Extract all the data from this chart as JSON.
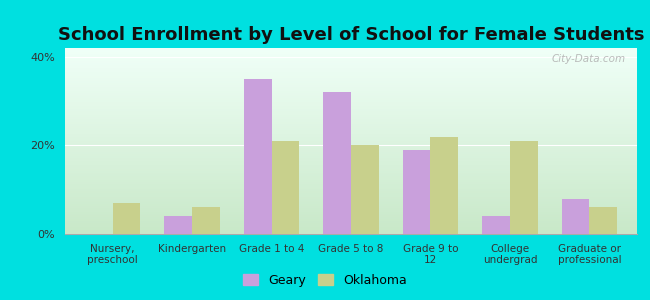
{
  "title": "School Enrollment by Level of School for Female Students",
  "categories": [
    "Nursery,\npreschool",
    "Kindergarten",
    "Grade 1 to 4",
    "Grade 5 to 8",
    "Grade 9 to\n12",
    "College\nundergrad",
    "Graduate or\nprofessional"
  ],
  "geary": [
    0,
    4,
    35,
    32,
    19,
    4,
    8
  ],
  "oklahoma": [
    7,
    6,
    21,
    20,
    22,
    21,
    6
  ],
  "geary_color": "#c9a0dc",
  "oklahoma_color": "#c8d08c",
  "ylim": [
    0,
    42
  ],
  "yticks": [
    0,
    20,
    40
  ],
  "ytick_labels": [
    "0%",
    "20%",
    "40%"
  ],
  "outer_bg": "#00e0e0",
  "bar_width": 0.35,
  "title_fontsize": 13,
  "legend_labels": [
    "Geary",
    "Oklahoma"
  ],
  "watermark": "City-Data.com"
}
